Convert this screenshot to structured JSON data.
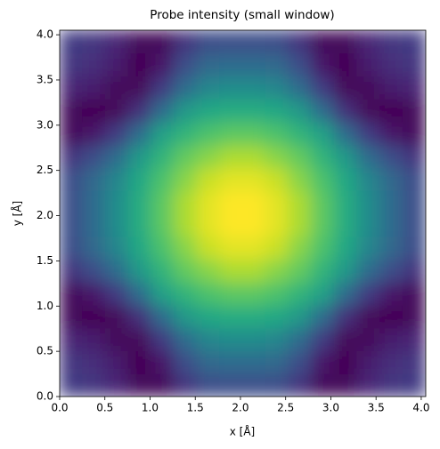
{
  "chart_data": {
    "type": "heatmap",
    "title": "Probe intensity (small window)",
    "xlabel": "x [Å]",
    "ylabel": "y [Å]",
    "colormap": "viridis",
    "xlim": [
      0,
      4.05
    ],
    "ylim": [
      0,
      4.05
    ],
    "xticks": [
      {
        "value": 0,
        "label": "0.0"
      },
      0.5,
      {
        "value": 1,
        "label": "1.0"
      },
      1.5,
      {
        "value": 2,
        "label": "2.0"
      },
      2.5,
      {
        "value": 3,
        "label": "3.0"
      },
      3.5,
      {
        "value": 4,
        "label": "4.0"
      }
    ],
    "yticks": [
      {
        "value": 0,
        "label": "0.0"
      },
      0.5,
      {
        "value": 1,
        "label": "1.0"
      },
      1.5,
      {
        "value": 2,
        "label": "2.0"
      },
      2.5,
      {
        "value": 3,
        "label": "3.0"
      },
      3.5,
      {
        "value": 4,
        "label": "4.0"
      }
    ],
    "z": [
      [
        0.19,
        0.17,
        0.12,
        0.04,
        0.04,
        0.16,
        0.24,
        0.25,
        0.25,
        0.24,
        0.16,
        0.04,
        0.04,
        0.12,
        0.17,
        0.19
      ],
      [
        0.17,
        0.14,
        0.09,
        0.02,
        0.08,
        0.24,
        0.34,
        0.35,
        0.35,
        0.34,
        0.24,
        0.08,
        0.02,
        0.09,
        0.14,
        0.17
      ],
      [
        0.12,
        0.09,
        0.04,
        0.04,
        0.18,
        0.35,
        0.45,
        0.47,
        0.47,
        0.45,
        0.35,
        0.18,
        0.04,
        0.04,
        0.09,
        0.12
      ],
      [
        0.04,
        0.02,
        0.04,
        0.15,
        0.35,
        0.52,
        0.58,
        0.6,
        0.6,
        0.58,
        0.52,
        0.35,
        0.15,
        0.04,
        0.02,
        0.04
      ],
      [
        0.04,
        0.08,
        0.18,
        0.35,
        0.55,
        0.63,
        0.69,
        0.72,
        0.72,
        0.69,
        0.63,
        0.55,
        0.35,
        0.18,
        0.08,
        0.04
      ],
      [
        0.16,
        0.24,
        0.35,
        0.52,
        0.63,
        0.73,
        0.79,
        0.84,
        0.84,
        0.79,
        0.73,
        0.63,
        0.52,
        0.35,
        0.24,
        0.16
      ],
      [
        0.24,
        0.34,
        0.45,
        0.58,
        0.69,
        0.79,
        0.88,
        0.92,
        0.92,
        0.88,
        0.79,
        0.69,
        0.58,
        0.45,
        0.34,
        0.24
      ],
      [
        0.25,
        0.35,
        0.47,
        0.6,
        0.72,
        0.84,
        0.92,
        0.96,
        0.96,
        0.92,
        0.84,
        0.72,
        0.6,
        0.47,
        0.35,
        0.25
      ],
      [
        0.25,
        0.35,
        0.47,
        0.6,
        0.72,
        0.84,
        0.92,
        0.96,
        0.96,
        0.92,
        0.84,
        0.72,
        0.6,
        0.47,
        0.35,
        0.25
      ],
      [
        0.24,
        0.34,
        0.45,
        0.58,
        0.69,
        0.79,
        0.88,
        0.92,
        0.92,
        0.88,
        0.79,
        0.69,
        0.58,
        0.45,
        0.34,
        0.24
      ],
      [
        0.16,
        0.24,
        0.35,
        0.52,
        0.63,
        0.73,
        0.79,
        0.84,
        0.84,
        0.79,
        0.73,
        0.63,
        0.52,
        0.35,
        0.24,
        0.16
      ],
      [
        0.04,
        0.08,
        0.18,
        0.35,
        0.55,
        0.63,
        0.69,
        0.72,
        0.72,
        0.69,
        0.63,
        0.55,
        0.35,
        0.18,
        0.08,
        0.04
      ],
      [
        0.04,
        0.02,
        0.04,
        0.15,
        0.35,
        0.52,
        0.58,
        0.6,
        0.6,
        0.58,
        0.52,
        0.35,
        0.15,
        0.04,
        0.02,
        0.04
      ],
      [
        0.12,
        0.09,
        0.04,
        0.04,
        0.18,
        0.35,
        0.45,
        0.47,
        0.47,
        0.45,
        0.35,
        0.18,
        0.04,
        0.04,
        0.09,
        0.12
      ],
      [
        0.17,
        0.14,
        0.09,
        0.02,
        0.08,
        0.24,
        0.34,
        0.35,
        0.35,
        0.34,
        0.24,
        0.08,
        0.02,
        0.09,
        0.14,
        0.17
      ],
      [
        0.19,
        0.17,
        0.12,
        0.04,
        0.04,
        0.16,
        0.24,
        0.25,
        0.25,
        0.24,
        0.16,
        0.04,
        0.04,
        0.12,
        0.17,
        0.19
      ]
    ]
  }
}
